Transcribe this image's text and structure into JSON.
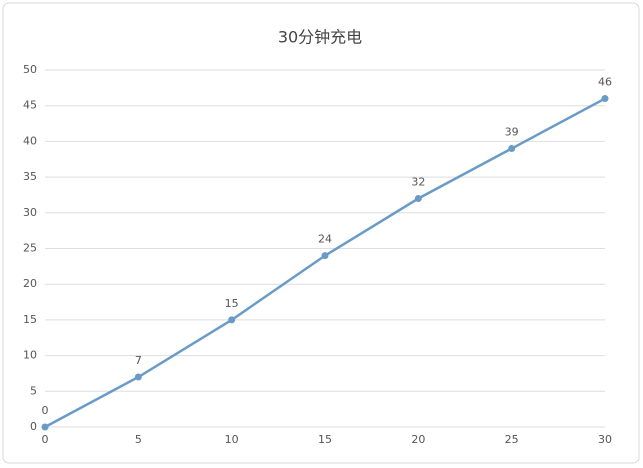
{
  "chart_data": {
    "type": "line",
    "title": "30分钟充电",
    "x": [
      0,
      5,
      10,
      15,
      20,
      25,
      30
    ],
    "values": [
      0,
      7,
      15,
      24,
      32,
      39,
      46
    ],
    "color": "#6a9bc7",
    "xlim": [
      0,
      30
    ],
    "xticks": [
      0,
      5,
      10,
      15,
      20,
      25,
      30
    ],
    "ylim": [
      0,
      50
    ],
    "yticks": [
      0,
      5,
      10,
      15,
      20,
      25,
      30,
      35,
      40,
      45,
      50
    ],
    "grid": true
  }
}
